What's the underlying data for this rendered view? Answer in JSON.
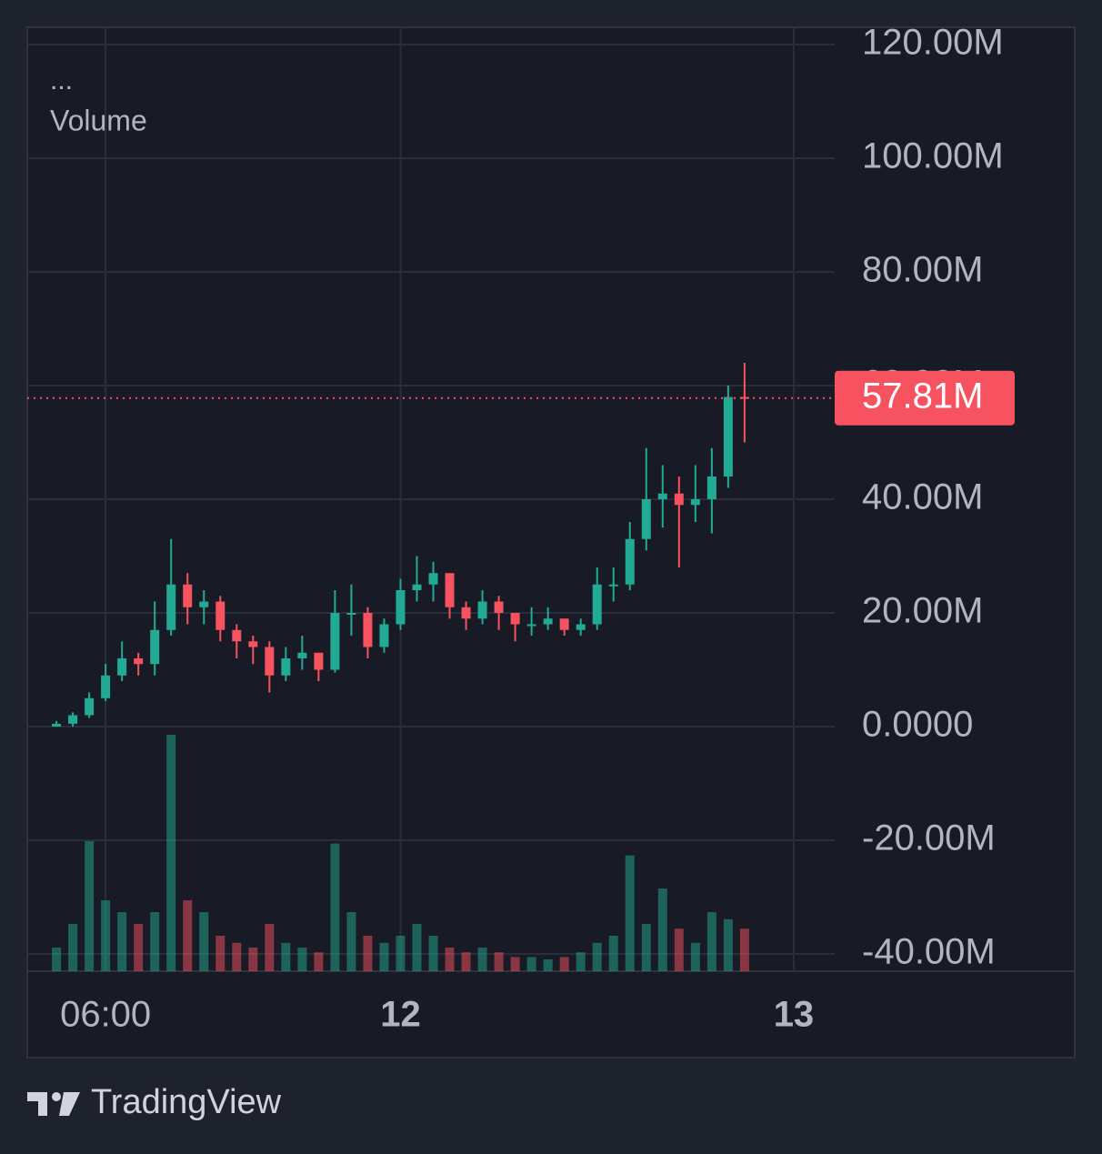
{
  "chart_data": {
    "type": "candlestick",
    "legend_dots": "...",
    "volume_label": "Volume",
    "brand": "TradingView",
    "x": [
      3,
      4,
      5,
      6,
      7,
      8,
      9,
      10,
      11,
      12,
      13,
      14,
      15,
      16,
      17,
      18,
      19,
      20,
      21,
      22,
      23,
      24,
      25,
      26,
      27,
      28,
      29,
      30,
      31,
      32,
      33,
      34,
      35,
      36,
      37,
      38,
      39,
      40,
      41,
      42,
      43,
      44,
      45
    ],
    "open": [
      0,
      0.5,
      2,
      5,
      9,
      12,
      11,
      17,
      25,
      21,
      22,
      17,
      15,
      14,
      9,
      12,
      13,
      10,
      20,
      20,
      14,
      18,
      24,
      25,
      27,
      21,
      19,
      22,
      20,
      18,
      18,
      19,
      17,
      18,
      25,
      25,
      33,
      40,
      41,
      39,
      40,
      44,
      58
    ],
    "high": [
      1,
      2.5,
      6,
      11,
      15,
      13,
      22,
      33,
      27,
      24,
      23,
      18,
      16,
      15,
      14,
      16,
      13,
      24,
      25,
      21,
      19,
      26,
      30,
      29,
      27,
      22,
      24,
      23,
      20,
      21,
      21,
      19,
      19,
      28,
      28,
      36,
      49,
      46,
      44,
      46,
      49,
      60,
      64
    ],
    "low": [
      0,
      0,
      1.5,
      4.5,
      8,
      9,
      9,
      16,
      18,
      18,
      15,
      12,
      11,
      6,
      8,
      10,
      8,
      9.5,
      16,
      12,
      13,
      17,
      22,
      22,
      19,
      17,
      18,
      17,
      15,
      16,
      17,
      16,
      16,
      17,
      22,
      24,
      31,
      35,
      28,
      36,
      34,
      42,
      50
    ],
    "close": [
      0.5,
      2,
      5,
      9,
      12,
      11,
      17,
      25,
      21,
      22,
      17,
      15,
      14,
      9,
      12,
      13,
      10,
      20,
      20,
      14,
      18,
      24,
      25,
      27,
      21,
      19,
      22,
      20,
      18,
      18,
      19,
      17,
      18,
      25,
      25,
      33,
      40,
      41,
      39,
      40,
      44,
      58,
      57.81
    ],
    "volume": [
      10,
      20,
      55,
      30,
      25,
      20,
      25,
      100,
      30,
      25,
      15,
      12,
      10,
      20,
      12,
      10,
      8,
      54,
      25,
      15,
      12,
      15,
      20,
      15,
      10,
      8,
      10,
      8,
      6,
      6,
      5,
      6,
      8,
      12,
      15,
      49,
      20,
      35,
      18,
      12,
      25,
      22,
      18
    ],
    "last_price_label": "57.81M",
    "up_color": "#22ab94",
    "down_color": "#f7525f",
    "grid": true,
    "xlim": [
      1.22,
      50.5
    ],
    "xticks": [
      {
        "value": 6,
        "label": "06:00"
      },
      {
        "value": 24,
        "label": "12"
      },
      {
        "value": 48,
        "label": "13"
      }
    ],
    "ylim": [
      -43.04,
      123.04
    ],
    "yticks": [
      {
        "value": -40,
        "label": "-40.00M"
      },
      {
        "value": -20,
        "label": "-20.00M"
      },
      {
        "value": 0,
        "label": "0.0000"
      },
      {
        "value": 20,
        "label": "20.00M"
      },
      {
        "value": 40,
        "label": "40.00M"
      },
      {
        "value": 60,
        "label": "60.00M"
      },
      {
        "value": 80,
        "label": "80.00M"
      },
      {
        "value": 100,
        "label": "100.00M"
      },
      {
        "value": 120,
        "label": "120.00M"
      }
    ]
  }
}
